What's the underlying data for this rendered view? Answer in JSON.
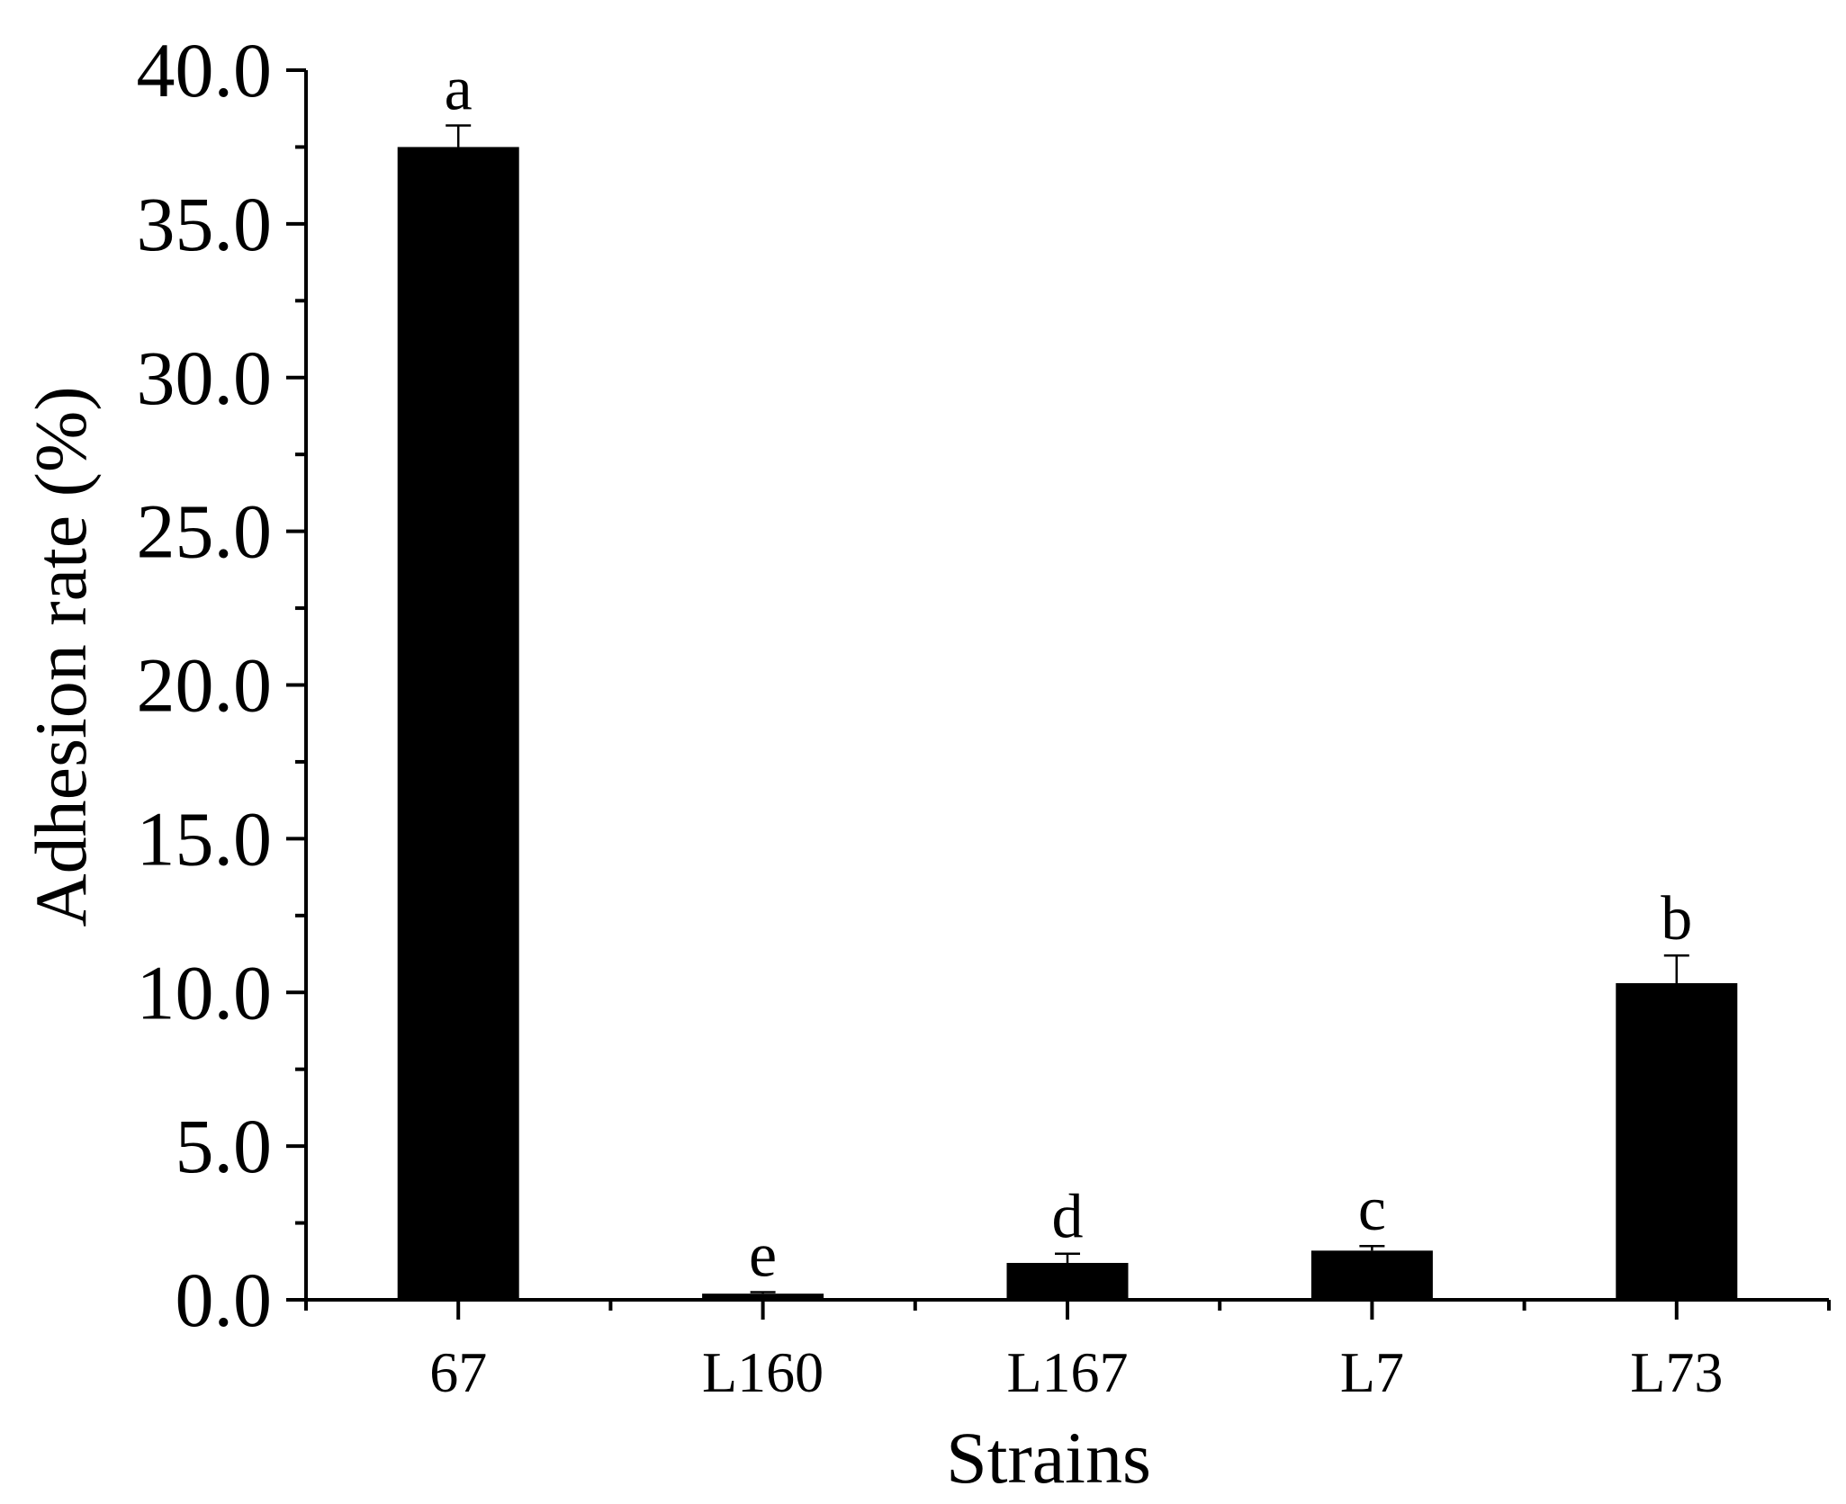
{
  "chart_data": {
    "type": "bar",
    "title": "",
    "xlabel": "Strains",
    "ylabel": "Adhesion rate (%)",
    "categories": [
      "67",
      "L160",
      "L167",
      "L7",
      "L73"
    ],
    "values": [
      37.5,
      0.2,
      1.2,
      1.6,
      10.3
    ],
    "errors": [
      0.7,
      0.05,
      0.3,
      0.15,
      0.9
    ],
    "significance_labels": [
      "a",
      "e",
      "d",
      "c",
      "b"
    ],
    "ylim": [
      0,
      40
    ],
    "yticks": [
      "0.0",
      "5.0",
      "10.0",
      "15.0",
      "20.0",
      "25.0",
      "30.0",
      "35.0",
      "40.0"
    ],
    "grid": false,
    "legend": "none",
    "bar_color": "#000000"
  }
}
